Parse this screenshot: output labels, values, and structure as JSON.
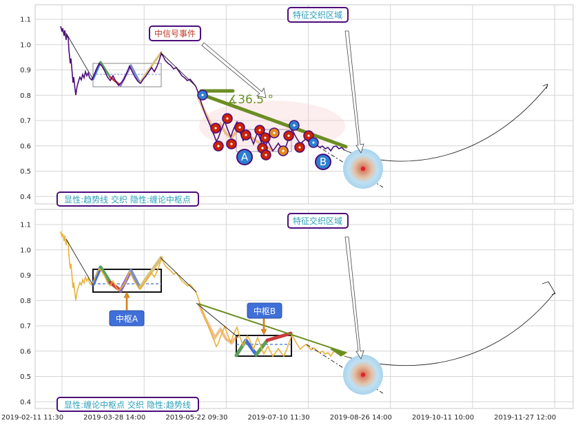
{
  "chart_data": [
    {
      "type": "line",
      "panel": "top",
      "title": "",
      "xlabel": "",
      "ylabel": "",
      "ylim": [
        0.37,
        1.15
      ],
      "y_ticks": [
        "0.4",
        "0.5",
        "0.6",
        "0.7",
        "0.8",
        "0.9",
        "1.0",
        "1.1"
      ],
      "grid": true,
      "annotations": {
        "signal_event": "中信号事件",
        "feature_zone": "特征交织区域",
        "angle": "∡36.5 °",
        "mark_a": "A",
        "mark_b": "B",
        "legend": "显性:趋势线 交织 隐性:缠论中枢点"
      }
    },
    {
      "type": "line",
      "panel": "bottom",
      "title": "",
      "xlabel": "",
      "ylabel": "",
      "ylim": [
        0.37,
        1.15
      ],
      "y_ticks": [
        "0.4",
        "0.5",
        "0.6",
        "0.7",
        "0.8",
        "0.9",
        "1.0",
        "1.1"
      ],
      "x_ticks": [
        "2019-02-11 11:30",
        "2019-03-28 14:00",
        "2019-05-22 09:30",
        "2019-07-10 11:30",
        "2019-08-26 14:00",
        "2019-10-11 10:00",
        "2019-11-27 12:00"
      ],
      "grid": true,
      "annotations": {
        "feature_zone": "特征交织区域",
        "center_a": "中枢A",
        "center_b": "中枢B",
        "legend": "显性:缠论中枢点 交织 隐性:趋势线"
      }
    }
  ],
  "colors": {
    "top_series": "#4b0c7a",
    "bottom_series": "#e8b23a",
    "trend_green": "#6b8e23",
    "callout_border": "#4b0c7a",
    "signal_text": "#c0392b",
    "zone_text": "#2a9fb8",
    "marker_red": "#cc2200",
    "marker_orange": "#e58a1f",
    "marker_blue": "#2d7fd0",
    "note_fill": "#3f6fd8"
  }
}
